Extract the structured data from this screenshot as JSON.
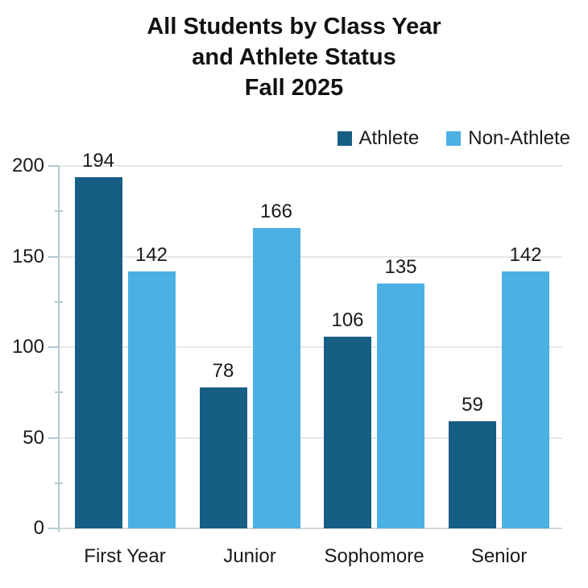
{
  "title": {
    "line1": "All Students by Class Year",
    "line2": "and Athlete Status",
    "line3": "Fall 2025"
  },
  "legend": {
    "items": [
      {
        "label": "Athlete",
        "color": "#175E85"
      },
      {
        "label": "Non-Athlete",
        "color": "#4BB0E2"
      }
    ]
  },
  "chart_data": {
    "type": "bar",
    "title": "All Students by Class Year and Athlete Status Fall 2025",
    "categories": [
      "First Year",
      "Junior",
      "Sophomore",
      "Senior"
    ],
    "series": [
      {
        "name": "Athlete",
        "color": "#175E85",
        "values": [
          194,
          78,
          106,
          59
        ]
      },
      {
        "name": "Non-Athlete",
        "color": "#4BB0E2",
        "values": [
          142,
          166,
          135,
          142
        ]
      }
    ],
    "xlabel": "",
    "ylabel": "",
    "ylim": [
      0,
      200
    ],
    "yticks": [
      0,
      50,
      100,
      150,
      200
    ],
    "minor_yticks": [
      25,
      75,
      125,
      175
    ],
    "grid": true,
    "data_labels": true,
    "legend_position": "top-right"
  },
  "colors": {
    "background": "#FFFFFF",
    "grid_line": "#E7E7E7",
    "axis_line": "#B2C8D3",
    "base_line": "#D6D6D6",
    "text": "#1A1A1A"
  }
}
